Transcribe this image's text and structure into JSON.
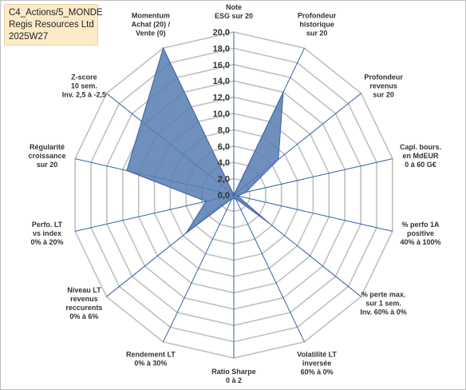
{
  "header": {
    "line1": "C4_Actions/5_MONDE",
    "line2": "Regis Resources Ltd",
    "line3": "2025W27"
  },
  "chart_data": {
    "type": "radar",
    "rlim": [
      0,
      20
    ],
    "ticks": [
      "0,0",
      "2,0",
      "4,0",
      "6,0",
      "8,0",
      "10,0",
      "12,0",
      "14,0",
      "16,0",
      "18,0",
      "20,0"
    ],
    "categories": [
      [
        "Note",
        "ESG sur 20"
      ],
      [
        "Profondeur",
        "historique",
        "sur 20"
      ],
      [
        "Profondeur",
        "revenus",
        "sur 20"
      ],
      [
        "Capi. bours.",
        "en MdEUR",
        "0 à 60 G€"
      ],
      [
        "% perfo 1A",
        "positive",
        "40% à 100%"
      ],
      [
        "% perte max.",
        "sur 1 sem.",
        "Inv. 60% à 0%"
      ],
      [
        "Volatilité LT",
        "inversée",
        "60% à 0%"
      ],
      [
        "Ratio Sharpe",
        "0 à 2"
      ],
      [
        "Rendement LT",
        "0% à 30%"
      ],
      [
        "Niveau LT",
        "revenus",
        "reccurents",
        "0% à 6%"
      ],
      [
        "Perfo. LT",
        "vs index",
        "0% à 20%"
      ],
      [
        "Régularité",
        "croissance",
        "sur 20"
      ],
      [
        "Z-score",
        "10 sem.",
        "Inv. 2,5 à -2,5"
      ],
      [
        "Momentum",
        "Achat (20) /",
        "Vente (0)"
      ]
    ],
    "values": [
      0,
      14,
      7,
      1.5,
      0.5,
      5.5,
      0.5,
      0.5,
      0.5,
      7.5,
      3.5,
      13.5,
      14.5,
      20
    ],
    "fill_color": "#5b7fb4",
    "edge_color": "#3d63a0",
    "grid_color": "#bfbfbf",
    "axis_color": "#2f62ad",
    "legend": "none"
  }
}
